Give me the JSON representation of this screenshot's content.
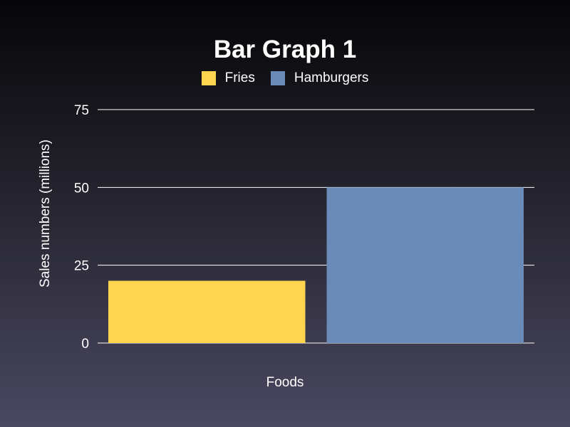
{
  "chart_data": {
    "type": "bar",
    "title": "Bar Graph 1",
    "xlabel": "Foods",
    "ylabel": "Sales numbers (millions)",
    "categories": [
      "Fries",
      "Hamburgers"
    ],
    "values": [
      20,
      50
    ],
    "colors": [
      "#ffd54f",
      "#6a8ab8"
    ],
    "ylim": [
      0,
      75
    ],
    "yticks": [
      "0",
      "25",
      "50",
      "75"
    ],
    "grid": true,
    "legend_position": "top-center"
  },
  "legend": [
    {
      "label": "Fries",
      "color": "#ffd54f"
    },
    {
      "label": "Hamburgers",
      "color": "#6a8ab8"
    }
  ]
}
